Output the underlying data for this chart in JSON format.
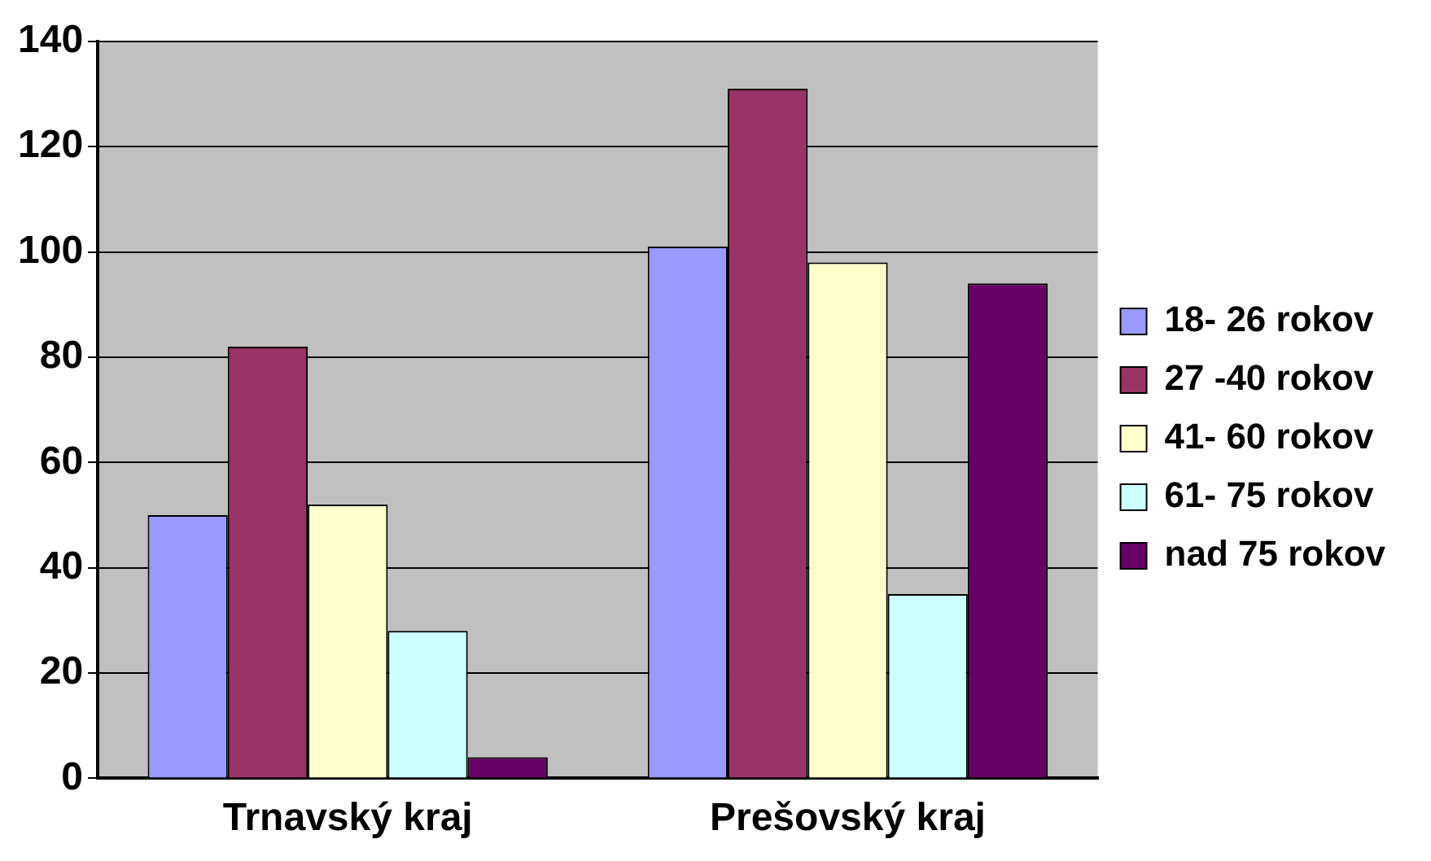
{
  "chart_data": {
    "type": "bar",
    "categories": [
      "Trnavský kraj",
      "Prešovský kraj"
    ],
    "series": [
      {
        "name": "18- 26 rokov",
        "color": "#9999ff",
        "values": [
          50,
          101
        ]
      },
      {
        "name": "27 -40 rokov",
        "color": "#993366",
        "values": [
          82,
          131
        ]
      },
      {
        "name": "41- 60 rokov",
        "color": "#ffffcc",
        "values": [
          52,
          98
        ]
      },
      {
        "name": "61- 75 rokov",
        "color": "#ccffff",
        "values": [
          28,
          35
        ]
      },
      {
        "name": "nad 75 rokov",
        "color": "#660066",
        "values": [
          4,
          94
        ]
      }
    ],
    "ylim": [
      0,
      140
    ],
    "yticks": [
      0,
      20,
      40,
      60,
      80,
      100,
      120,
      140
    ],
    "grid": "y",
    "legend": "right"
  }
}
